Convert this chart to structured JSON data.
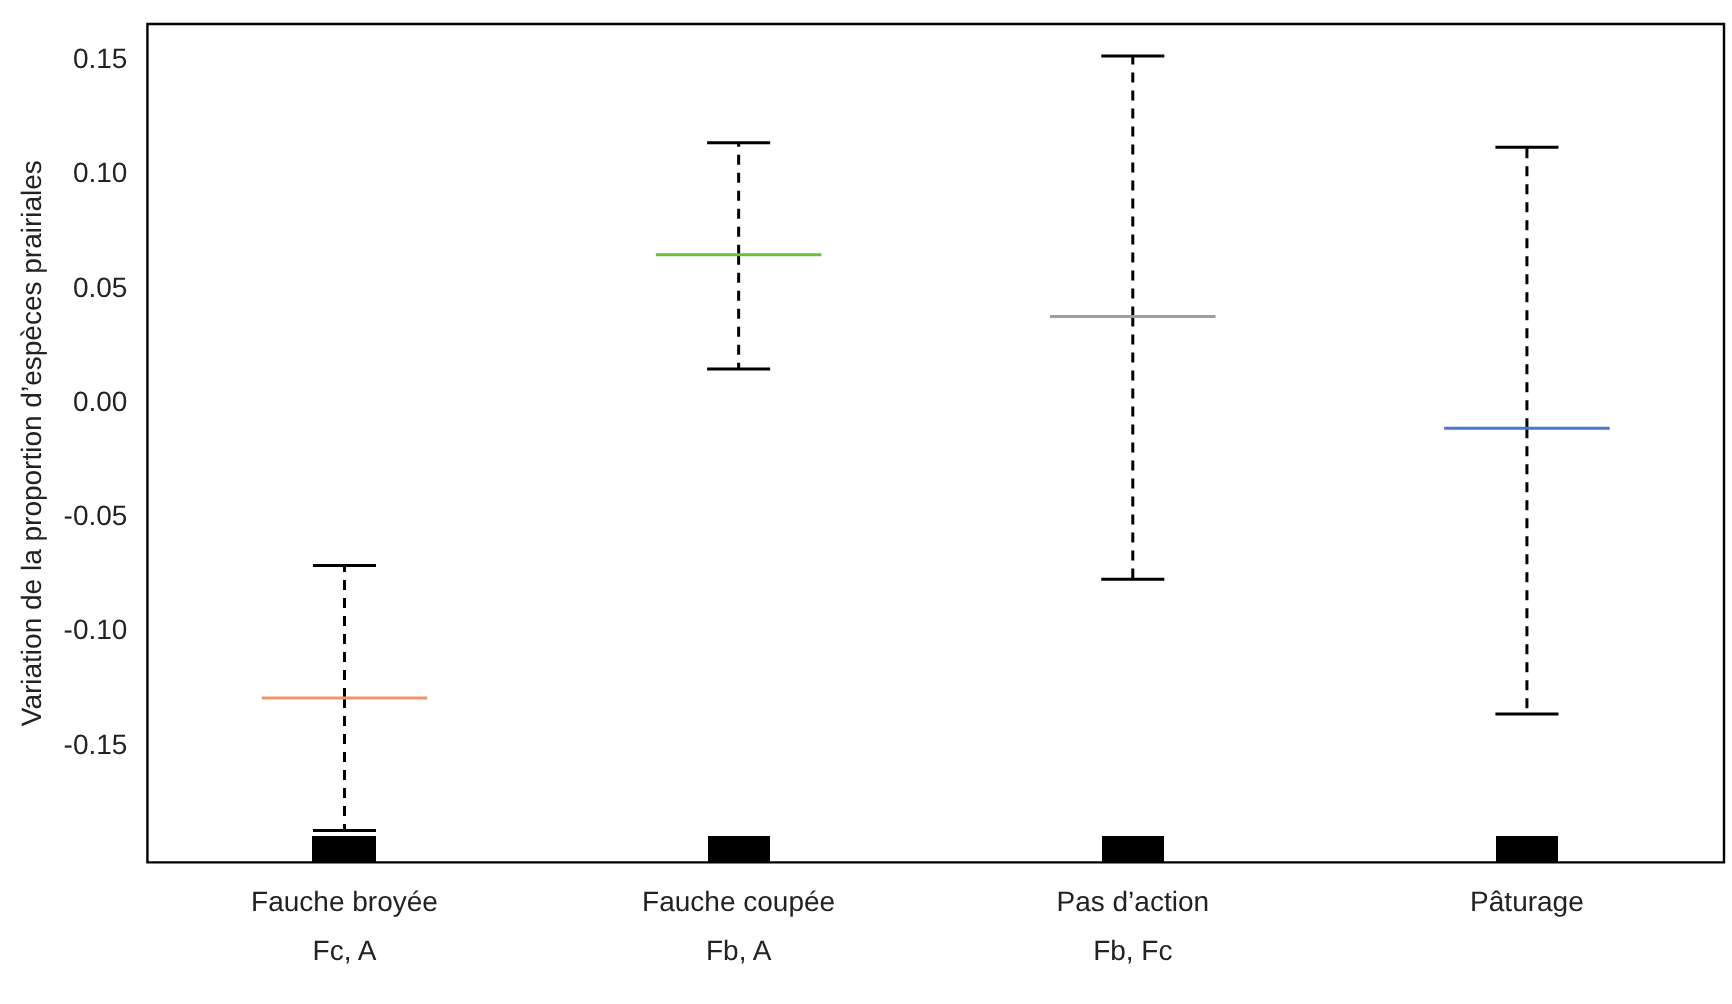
{
  "chart_data": {
    "type": "box",
    "ylabel": "Variation de la proportion d’espèces prairiales",
    "categories": [
      "Fauche broyée",
      "Fauche coupée",
      "Pas d’action",
      "Pâturage"
    ],
    "boxes": [
      {
        "low": -0.187,
        "q1": -0.129,
        "median": -0.129,
        "q3": -0.129,
        "high": -0.071
      },
      {
        "low": 0.015,
        "q1": 0.065,
        "median": 0.065,
        "q3": 0.065,
        "high": 0.114
      },
      {
        "low": -0.077,
        "q1": 0.038,
        "median": 0.038,
        "q3": 0.038,
        "high": 0.152
      },
      {
        "low": -0.136,
        "q1": -0.011,
        "median": -0.011,
        "q3": -0.011,
        "high": 0.112
      }
    ],
    "colors": [
      "#f0956a",
      "#6cbf3c",
      "#9e9e9e",
      "#4a78c8"
    ],
    "annotations": [
      "Fc, A",
      "Fb, A",
      "Fb, Fc"
    ],
    "ylim": [
      -0.201,
      0.166
    ],
    "yticks": [
      -0.15,
      {
        "value": -0.1,
        "label": "-0.10"
      },
      -0.05,
      {
        "value": 0,
        "label": "0.00"
      },
      0.05,
      {
        "value": 0.1,
        "label": "0.10"
      },
      0.15
    ],
    "grid": false,
    "legend": false
  }
}
